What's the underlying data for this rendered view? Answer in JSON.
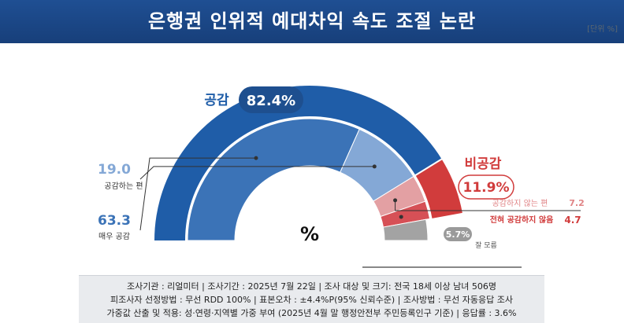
{
  "title": "은행권 인위적 예대차익 속도 조절 논란",
  "unit": "[단위 %]",
  "chart_data": {
    "type": "pie",
    "center_label": "%",
    "groups": [
      {
        "name": "공감",
        "value": "82.4%",
        "color": "#1f5da8"
      },
      {
        "name": "비공감",
        "value": "11.9%",
        "color": "#d13c3c"
      }
    ],
    "slices": [
      {
        "label": "매우 공감",
        "value": 63.3,
        "display": "63.3",
        "color": "#3b73b7"
      },
      {
        "label": "공감하는 편",
        "value": 19.0,
        "display": "19.0",
        "color": "#84a8d6"
      },
      {
        "label": "공감하지 않는 편",
        "value": 7.2,
        "display": "7.2",
        "color": "#e3a0a3"
      },
      {
        "label": "전혀 공감하지 않음",
        "value": 4.7,
        "display": "4.7",
        "color": "#d65056"
      },
      {
        "label": "잘 모름",
        "value": 5.7,
        "display": "5.7%",
        "color": "#a3a3a3"
      }
    ]
  },
  "footer": {
    "line1": "조사기관 : 리얼미터  |  조사기간 : 2025년 7월 22일 | 조사 대상 및 크기: 전국 18세 이상 남녀 506명",
    "line2": "피조사자 선정방법 : 무선 RDD 100% | 표본오차 : ±4.4%P(95% 신뢰수준) | 조사방법 : 무선 자동응답 조사",
    "line3": "가중값 산출 및 적용: 성·연령·지역별 가중 부여 (2025년 4월 말 행정안전부 주민등록인구 기준) | 응답률 : 3.6%"
  }
}
